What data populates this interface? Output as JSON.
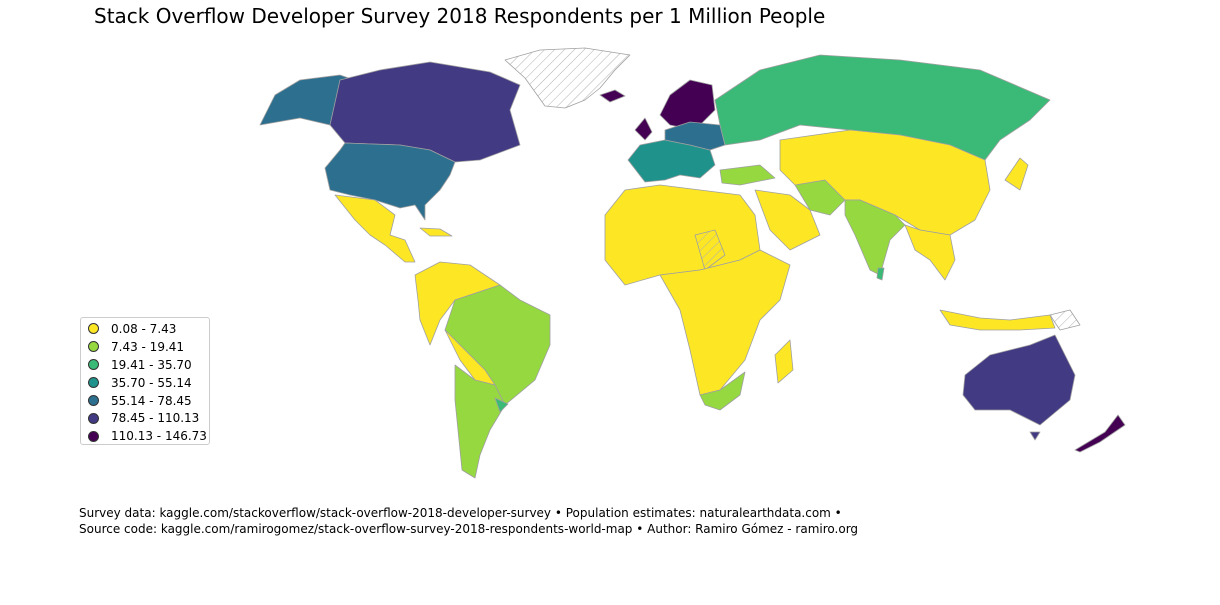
{
  "title": "Stack Overflow Developer Survey 2018 Respondents per 1 Million People",
  "legend": [
    {
      "label": "0.08 - 7.43",
      "color": "#fde725"
    },
    {
      "label": "7.43 - 19.41",
      "color": "#95d840"
    },
    {
      "label": "19.41 - 35.70",
      "color": "#3ab977"
    },
    {
      "label": "35.70 - 55.14",
      "color": "#20928c"
    },
    {
      "label": "55.14 - 78.45",
      "color": "#2d6f8e"
    },
    {
      "label": "78.45 - 110.13",
      "color": "#423a83"
    },
    {
      "label": "110.13 - 146.73",
      "color": "#440154"
    }
  ],
  "no_data_color": "#ffffff",
  "border_color": "#a0a0a0",
  "footer": {
    "line1": "Survey data: kaggle.com/stackoverflow/stack-overflow-2018-developer-survey • Population estimates: naturalearthdata.com •",
    "line2": "Source code: kaggle.com/ramirogomez/stack-overflow-survey-2018-respondents-world-map • Author: Ramiro Gómez - ramiro.org"
  }
}
